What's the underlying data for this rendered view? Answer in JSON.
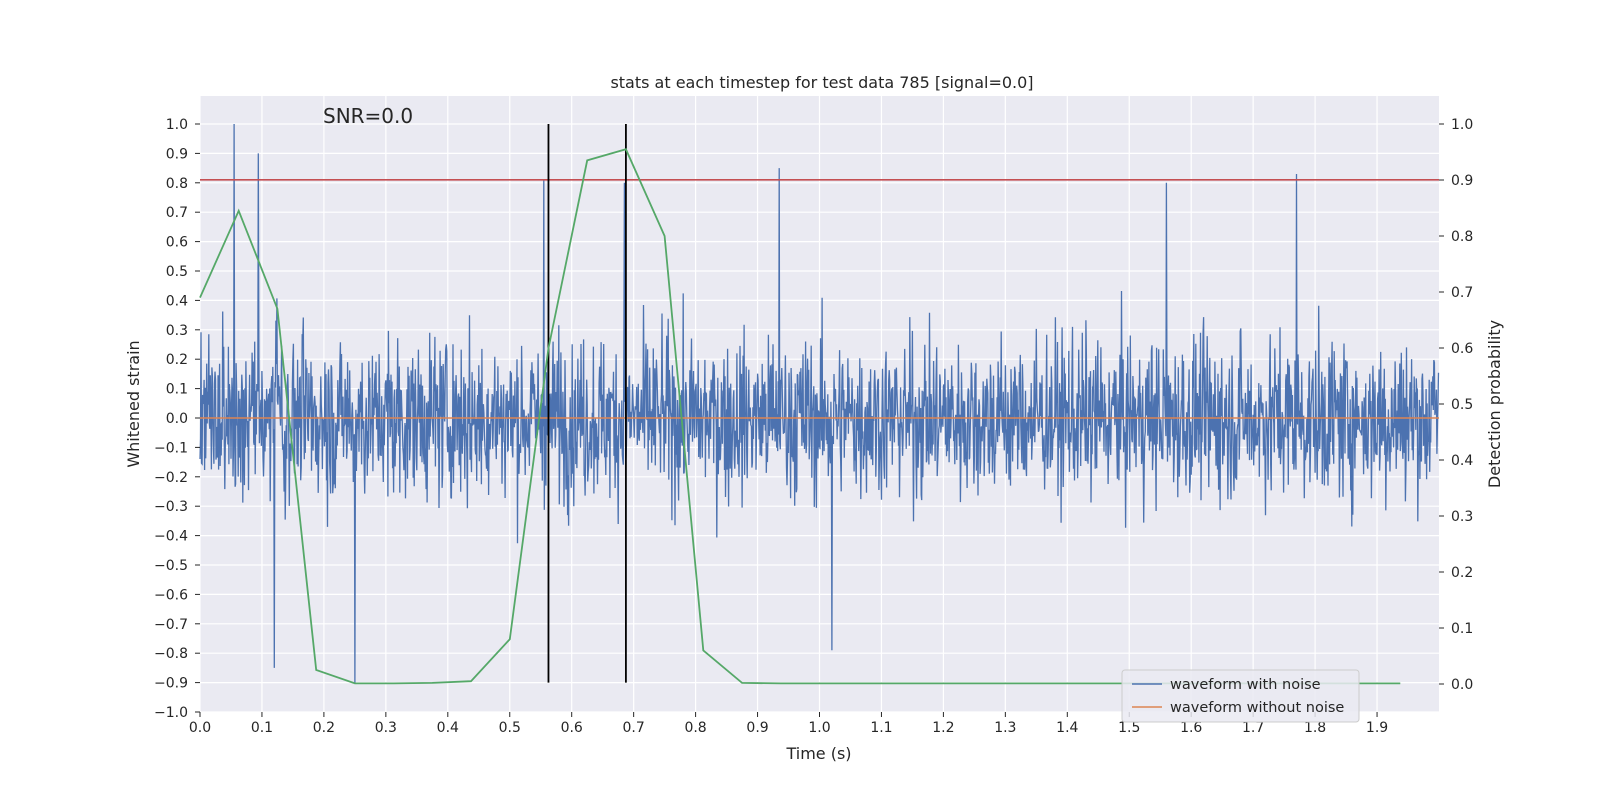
{
  "chart_data": {
    "type": "line",
    "title": "stats at each timestep for test data 785 [signal=0.0]",
    "xlabel": "Time (s)",
    "ylabel": "Whitened strain",
    "y2label": "Detection probability",
    "annotation": "SNR=0.0",
    "xlim": [
      0.0,
      2.0
    ],
    "ylim": [
      -1.0,
      1.1
    ],
    "y2lim": [
      -0.05,
      1.05
    ],
    "xticks": [
      "0.0",
      "0.1",
      "0.2",
      "0.3",
      "0.4",
      "0.5",
      "0.6",
      "0.7",
      "0.8",
      "0.9",
      "1.0",
      "1.1",
      "1.2",
      "1.3",
      "1.4",
      "1.5",
      "1.6",
      "1.7",
      "1.8",
      "1.9"
    ],
    "yticks": [
      "1.0",
      "0.9",
      "0.8",
      "0.7",
      "0.6",
      "0.5",
      "0.4",
      "0.3",
      "0.2",
      "0.1",
      "0.0",
      "−0.1",
      "−0.2",
      "−0.3",
      "−0.4",
      "−0.5",
      "−0.6",
      "−0.7",
      "−0.8",
      "−0.9",
      "−1.0"
    ],
    "y2ticks": [
      "1.0",
      "0.9",
      "0.8",
      "0.7",
      "0.6",
      "0.5",
      "0.4",
      "0.3",
      "0.2",
      "0.1",
      "0.0"
    ],
    "grid": true,
    "legend_position": "lower-right",
    "threshold": 0.81,
    "vlines": [
      0.5625,
      0.6875
    ],
    "series": [
      {
        "name": "waveform with noise",
        "color": "#4c72b0",
        "axis": "left",
        "description": "dense whitened noise trace, approx. 4096 samples over 0–2 s, amplitude mostly within ±0.6",
        "peaks": [
          [
            0.055,
            1.0
          ],
          [
            0.094,
            0.9
          ],
          [
            0.25,
            -0.9
          ],
          [
            0.935,
            0.85
          ],
          [
            0.555,
            0.81
          ],
          [
            0.685,
            0.8
          ],
          [
            1.77,
            0.83
          ],
          [
            1.56,
            0.8
          ],
          [
            1.02,
            -0.79
          ],
          [
            0.12,
            -0.85
          ]
        ]
      },
      {
        "name": "waveform without noise",
        "color": "#dd8452",
        "axis": "left",
        "x": [
          0.0,
          2.0
        ],
        "values": [
          0.0,
          0.0
        ]
      },
      {
        "name": "detection probability",
        "color": "#55a868",
        "axis": "right",
        "x": [
          0.0,
          0.0625,
          0.125,
          0.1875,
          0.25,
          0.3125,
          0.375,
          0.4375,
          0.5,
          0.5625,
          0.625,
          0.6875,
          0.75,
          0.8125,
          0.875,
          0.9375,
          1.0,
          1.0625,
          1.125,
          1.1875,
          1.25,
          1.3125,
          1.375,
          1.4375,
          1.5,
          1.5625,
          1.625,
          1.6875,
          1.75,
          1.8125,
          1.875,
          1.9375
        ],
        "values": [
          0.69,
          0.845,
          0.67,
          0.025,
          0.001,
          0.001,
          0.002,
          0.005,
          0.08,
          0.6,
          0.935,
          0.955,
          0.8,
          0.06,
          0.002,
          0.001,
          0.001,
          0.001,
          0.001,
          0.001,
          0.001,
          0.001,
          0.001,
          0.001,
          0.001,
          0.001,
          0.001,
          0.001,
          0.001,
          0.001,
          0.001,
          0.001
        ]
      }
    ],
    "legend": [
      {
        "label": "waveform with noise",
        "color": "#4c72b0"
      },
      {
        "label": "waveform without noise",
        "color": "#dd8452"
      }
    ]
  }
}
